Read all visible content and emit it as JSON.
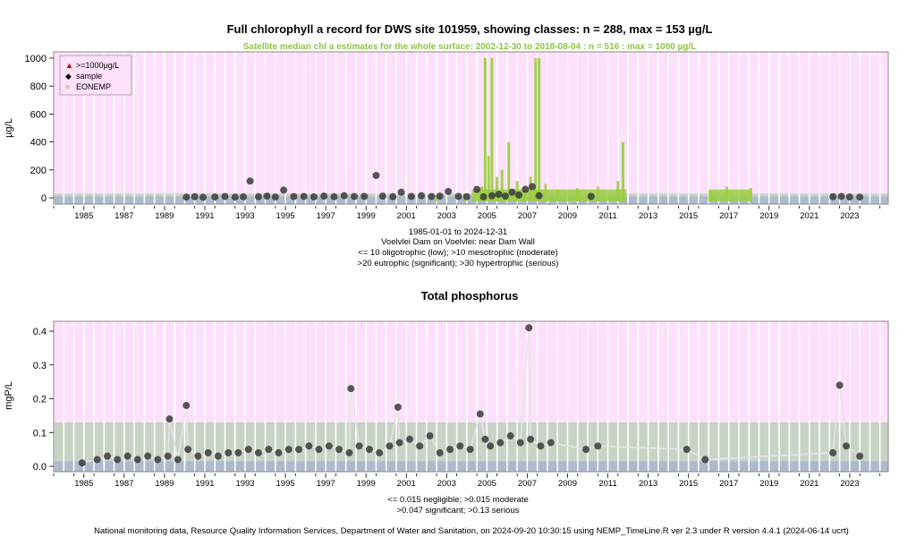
{
  "colors": {
    "pink_band": "#fde0fb",
    "green_band": "#c8d3c6",
    "blue_band": "#aebacd",
    "grey_band": "#c9d0d8",
    "satellite": "#9acd3f",
    "points": "#3a3a3a",
    "subtitle": "#8cc63f",
    "frame": "#888888"
  },
  "chart1": {
    "title": "Full chlorophyll a record for DWS site 101959, showing classes: n = 288, max = 153 µg/L",
    "subtitle": "Satellite median chl a estimates for the whole surface: 2002-12-30 to 2018-08-04 : n = 516 : max = 1000 µg/L",
    "ylabel": "µg/L",
    "legend": [
      {
        "symbol": "▲",
        "label": ">=1000µg/L",
        "color": "#cc0000"
      },
      {
        "symbol": "◆",
        "label": "sample",
        "color": "#000000"
      },
      {
        "symbol": "■",
        "label": "EONEMP",
        "color": "#c6d9a0"
      }
    ],
    "notes": [
      "1985-01-01 to 2024-12-31",
      "Voelvlei Dam on Voelvlei: near Dam Wall",
      "<= 10 oligotrophic (low); >10 mesotrophic (moderate)",
      ">20 eutrophic (significant); >30 hypertrophic (serious)"
    ]
  },
  "chart2": {
    "title": "Total phosphorus",
    "ylabel": "mgP/L",
    "notes": [
      "<= 0.015 negligible; >0.015 moderate",
      ">0.047 significant; >0.13 serious"
    ]
  },
  "footer": "National monitoring data, Resource Quality Information Services, Department of Water and Sanitation, on 2024-09-20 10:30:15 using NEMP_TimeLine.R ver 2.3 under R version 4.4.1 (2024-06-14 ucrt)",
  "chart_data": [
    {
      "type": "scatter",
      "title": "Full chlorophyll a record for DWS site 101959, showing classes: n = 288, max = 153 µg/L",
      "ylabel": "µg/L",
      "xlim": [
        "1984-01-01",
        "2025-06-01"
      ],
      "ylim": [
        0,
        1000
      ],
      "yticks": [
        0,
        200,
        400,
        600,
        800,
        1000
      ],
      "xticks": [
        "1985",
        "1987",
        "1989",
        "1991",
        "1993",
        "1995",
        "1997",
        "1999",
        "2001",
        "2003",
        "2005",
        "2007",
        "2009",
        "2011",
        "2013",
        "2015",
        "2017",
        "2019",
        "2021",
        "2023"
      ],
      "class_thresholds": [
        10,
        20,
        30
      ],
      "legend_position": "top-left",
      "series": [
        {
          "name": "sample",
          "x": [
            "1990-08-01",
            "1991-01-01",
            "1991-06-01",
            "1992-01-01",
            "1992-07-01",
            "1993-01-01",
            "1993-06-01",
            "1993-10-01",
            "1994-03-01",
            "1994-08-01",
            "1995-01-01",
            "1995-06-01",
            "1995-12-01",
            "1996-06-01",
            "1996-12-01",
            "1997-06-01",
            "1997-12-01",
            "1998-06-01",
            "1998-12-01",
            "1999-06-01",
            "2000-01-01",
            "2000-05-01",
            "2000-11-01",
            "2001-04-01",
            "2001-10-01",
            "2002-04-01",
            "2002-10-01",
            "2003-03-01",
            "2003-08-01",
            "2004-02-01",
            "2004-07-01",
            "2005-01-01",
            "2005-05-01",
            "2005-10-01",
            "2006-02-01",
            "2006-06-01",
            "2006-10-01",
            "2007-02-01",
            "2007-06-01",
            "2007-10-01",
            "2008-02-01",
            "2010-09-01",
            "2022-09-01",
            "2023-02-01",
            "2023-07-01",
            "2024-01-01"
          ],
          "y": [
            5,
            8,
            4,
            6,
            10,
            5,
            7,
            120,
            8,
            12,
            6,
            55,
            9,
            10,
            7,
            12,
            8,
            15,
            9,
            10,
            160,
            12,
            8,
            40,
            10,
            15,
            9,
            12,
            45,
            10,
            8,
            60,
            7,
            15,
            25,
            12,
            40,
            20,
            60,
            80,
            15,
            10,
            8,
            10,
            6,
            5
          ]
        },
        {
          "name": "EONEMP",
          "x": [
            "2002-12-30",
            "2004-06-01",
            "2005-04-01",
            "2005-06-01",
            "2005-08-01",
            "2005-10-01",
            "2006-01-01",
            "2006-04-01",
            "2006-08-01",
            "2007-01-01",
            "2007-05-01",
            "2007-09-01",
            "2007-12-01",
            "2008-02-01",
            "2008-06-01",
            "2009-01-01",
            "2010-01-01",
            "2011-01-01",
            "2012-01-01",
            "2012-04-01",
            "2016-08-01",
            "2017-06-01",
            "2018-08-04"
          ],
          "y": [
            20,
            30,
            80,
            1000,
            300,
            1000,
            150,
            200,
            400,
            120,
            80,
            150,
            1000,
            1000,
            100,
            60,
            70,
            80,
            120,
            400,
            50,
            80,
            70
          ]
        }
      ]
    },
    {
      "type": "scatter",
      "title": "Total phosphorus",
      "ylabel": "mgP/L",
      "xlim": [
        "1984-01-01",
        "2025-06-01"
      ],
      "ylim": [
        0,
        0.42
      ],
      "yticks": [
        0.0,
        0.1,
        0.2,
        0.3,
        0.4
      ],
      "xticks": [
        "1985",
        "1987",
        "1989",
        "1991",
        "1993",
        "1995",
        "1997",
        "1999",
        "2001",
        "2003",
        "2005",
        "2007",
        "2009",
        "2011",
        "2013",
        "2015",
        "2017",
        "2019",
        "2021",
        "2023"
      ],
      "class_thresholds": [
        0.015,
        0.047,
        0.13
      ],
      "series": [
        {
          "name": "sample",
          "x": [
            "1985-06-01",
            "1986-03-01",
            "1986-09-01",
            "1987-03-01",
            "1987-09-01",
            "1988-03-01",
            "1988-09-01",
            "1989-03-01",
            "1989-09-01",
            "1989-10-01",
            "1990-03-01",
            "1990-08-01",
            "1990-09-01",
            "1991-03-01",
            "1991-09-01",
            "1992-03-01",
            "1992-09-01",
            "1993-03-01",
            "1993-09-01",
            "1994-03-01",
            "1994-09-01",
            "1995-03-01",
            "1995-09-01",
            "1996-03-01",
            "1996-09-01",
            "1997-03-01",
            "1997-09-01",
            "1998-03-01",
            "1998-09-01",
            "1998-10-01",
            "1999-03-01",
            "1999-09-01",
            "2000-03-01",
            "2000-09-01",
            "2001-02-01",
            "2001-03-01",
            "2001-09-01",
            "2002-03-01",
            "2002-09-01",
            "2003-03-01",
            "2003-09-01",
            "2004-03-01",
            "2004-09-01",
            "2005-03-01",
            "2005-06-01",
            "2005-09-01",
            "2006-03-01",
            "2006-09-01",
            "2007-03-01",
            "2007-08-01",
            "2007-09-01",
            "2008-03-01",
            "2008-09-01",
            "2010-06-01",
            "2011-01-01",
            "2015-06-01",
            "2016-05-01",
            "2022-09-01",
            "2023-01-01",
            "2023-05-01",
            "2024-01-01"
          ],
          "y": [
            0.01,
            0.02,
            0.03,
            0.02,
            0.03,
            0.02,
            0.03,
            0.02,
            0.03,
            0.14,
            0.02,
            0.18,
            0.05,
            0.03,
            0.04,
            0.03,
            0.04,
            0.04,
            0.05,
            0.04,
            0.05,
            0.04,
            0.05,
            0.05,
            0.06,
            0.05,
            0.06,
            0.05,
            0.04,
            0.23,
            0.06,
            0.05,
            0.04,
            0.06,
            0.175,
            0.07,
            0.08,
            0.06,
            0.09,
            0.04,
            0.05,
            0.06,
            0.05,
            0.155,
            0.08,
            0.06,
            0.07,
            0.09,
            0.07,
            0.41,
            0.08,
            0.06,
            0.07,
            0.05,
            0.06,
            0.05,
            0.02,
            0.04,
            0.24,
            0.06,
            0.03
          ]
        }
      ]
    }
  ]
}
